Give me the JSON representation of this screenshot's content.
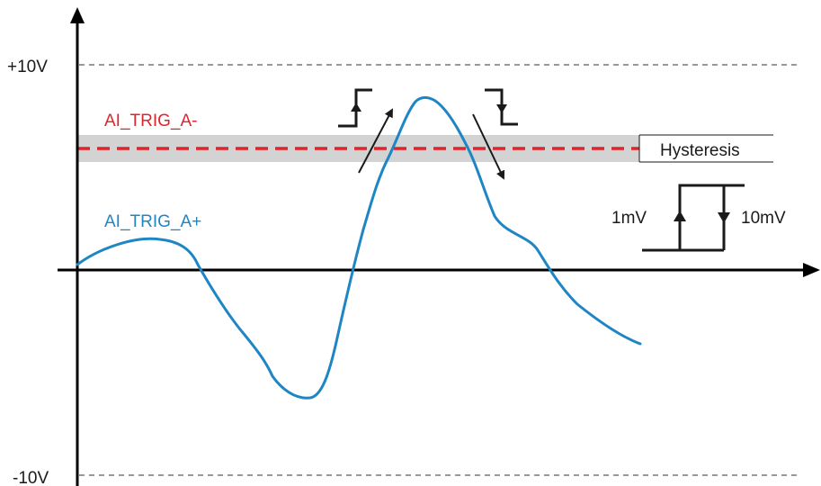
{
  "levels": {
    "top": "+10V",
    "bottom": "-10V"
  },
  "signals": {
    "trigger_level_label": "AI_TRIG_A-",
    "input_signal_label": "AI_TRIG_A+"
  },
  "hysteresis": {
    "label": "Hysteresis",
    "rising_threshold": "1mV",
    "falling_threshold": "10mV"
  },
  "colors": {
    "signal": "#1f86c4",
    "trigger_level": "#e0242b",
    "hysteresis_band": "#d3d3d3",
    "axes": "#000000"
  }
}
